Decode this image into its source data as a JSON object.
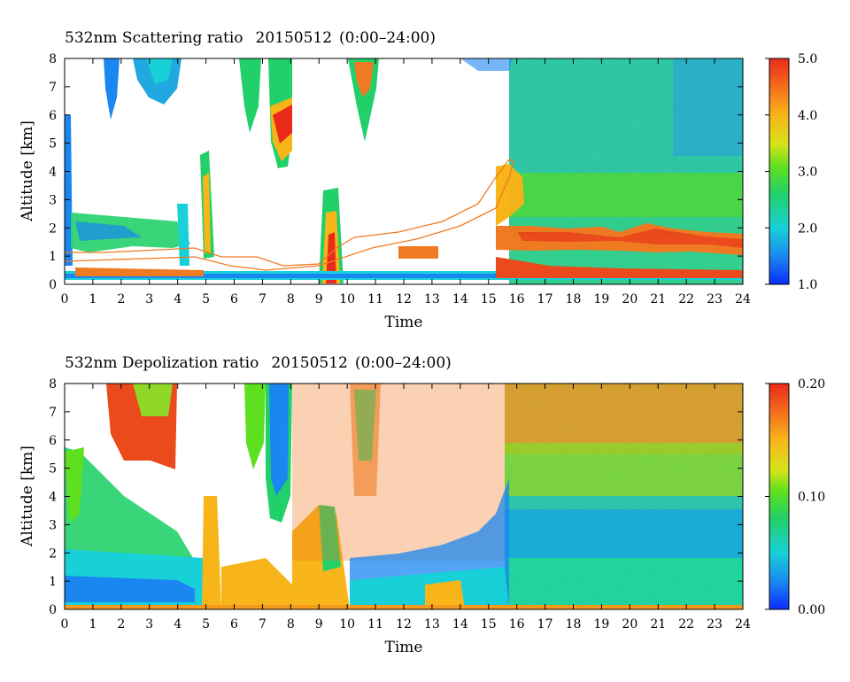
{
  "chart_data": [
    {
      "type": "heatmap",
      "title": "532nm Scattering ratio",
      "date": "20150512",
      "time_range": "(0:00–24:00)",
      "xlabel": "Time",
      "ylabel": "Altitude [km]",
      "xlim": [
        0,
        24
      ],
      "ylim": [
        0,
        8
      ],
      "x_ticks": [
        "0",
        "1",
        "2",
        "3",
        "4",
        "5",
        "6",
        "7",
        "8",
        "9",
        "10",
        "11",
        "12",
        "13",
        "14",
        "15",
        "16",
        "17",
        "18",
        "19",
        "20",
        "21",
        "22",
        "23",
        "24"
      ],
      "y_ticks": [
        "0",
        "1",
        "2",
        "3",
        "4",
        "5",
        "6",
        "7",
        "8"
      ],
      "colorbar": {
        "range": [
          1.0,
          5.0
        ],
        "tick_labels": [
          "5.0",
          "4.0",
          "3.0",
          "2.0",
          "1.0"
        ],
        "colormap": "jet"
      }
    },
    {
      "type": "heatmap",
      "title": "532nm Depolization ratio",
      "date": "20150512",
      "time_range": "(0:00–24:00)",
      "xlabel": "Time",
      "ylabel": "Altitude [km]",
      "xlim": [
        0,
        24
      ],
      "ylim": [
        0,
        8
      ],
      "x_ticks": [
        "0",
        "1",
        "2",
        "3",
        "4",
        "5",
        "6",
        "7",
        "8",
        "9",
        "10",
        "11",
        "12",
        "13",
        "14",
        "15",
        "16",
        "17",
        "18",
        "19",
        "20",
        "21",
        "22",
        "23",
        "24"
      ],
      "y_ticks": [
        "0",
        "1",
        "2",
        "3",
        "4",
        "5",
        "6",
        "7",
        "8"
      ],
      "colorbar": {
        "range": [
          0.0,
          0.2
        ],
        "tick_labels": [
          "0.20",
          "0.10",
          "0.00"
        ],
        "colormap": "jet"
      }
    }
  ]
}
